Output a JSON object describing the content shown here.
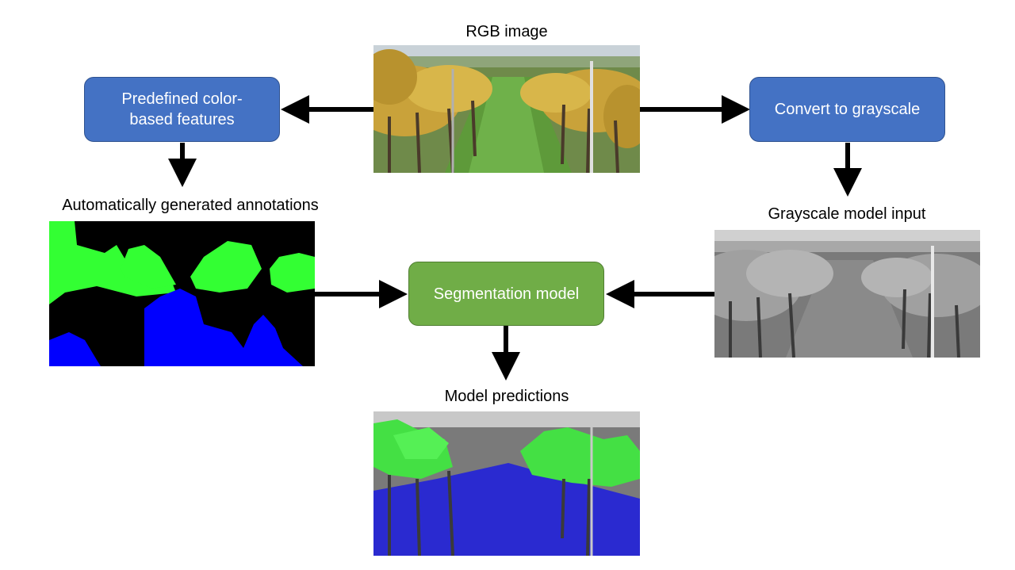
{
  "labels": {
    "rgb_image": "RGB image",
    "auto_annotations": "Automatically generated annotations",
    "grayscale_input": "Grayscale model input",
    "model_predictions": "Model predictions"
  },
  "boxes": {
    "color_features": "Predefined color-based features",
    "grayscale": "Convert to grayscale",
    "segmentation": "Segmentation model"
  },
  "colors": {
    "box_blue": "#4472c4",
    "box_green": "#70ad47",
    "mask_green": "#33ff33",
    "mask_blue": "#0000ff",
    "mask_black": "#000000"
  }
}
